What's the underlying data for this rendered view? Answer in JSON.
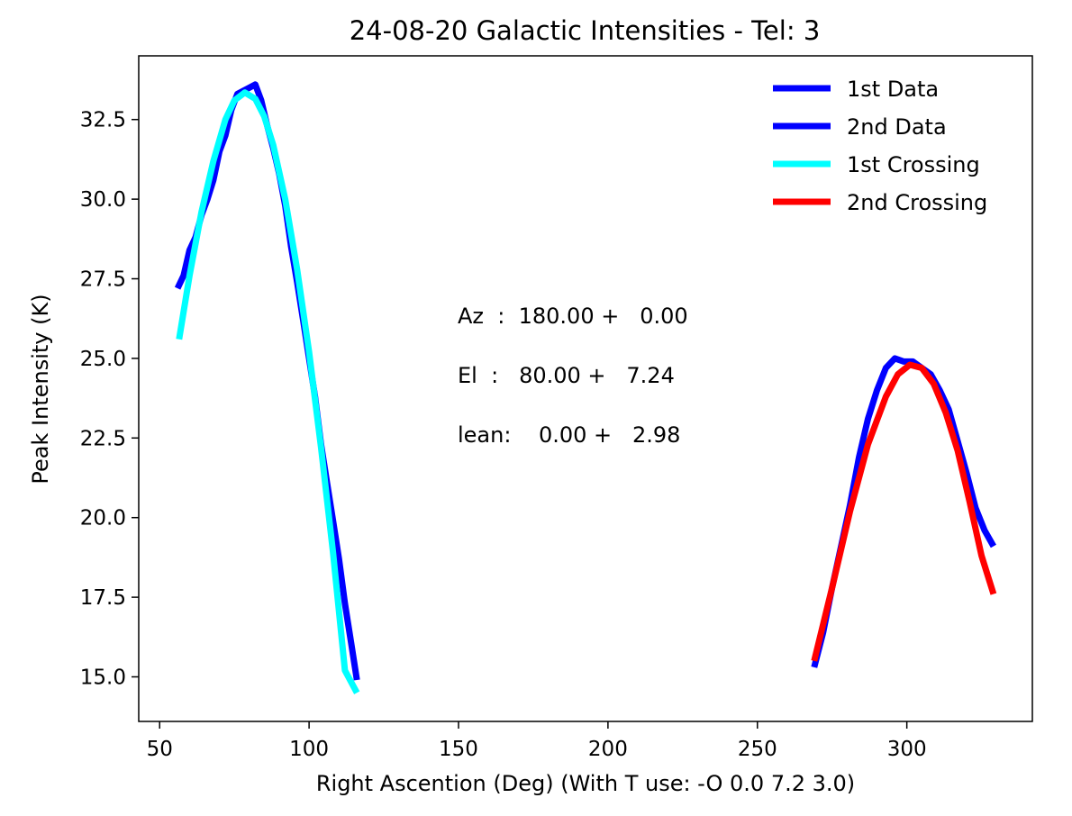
{
  "chart_data": {
    "type": "line",
    "title": "24-08-20 Galactic Intensities - Tel: 3",
    "xlabel": "Right Ascention (Deg)  (With T use: -O 0.0 7.2 3.0)",
    "ylabel": "Peak Intensity (K)",
    "xlim": [
      43,
      342
    ],
    "ylim": [
      13.6,
      34.5
    ],
    "x_ticks": [
      50,
      100,
      150,
      200,
      250,
      300
    ],
    "y_ticks": [
      15.0,
      17.5,
      20.0,
      22.5,
      25.0,
      27.5,
      30.0,
      32.5
    ],
    "x_tick_labels": [
      "50",
      "100",
      "150",
      "200",
      "250",
      "300"
    ],
    "y_tick_labels": [
      "15.0",
      "17.5",
      "20.0",
      "22.5",
      "25.0",
      "27.5",
      "30.0",
      "32.5"
    ],
    "grid": false,
    "legend_position": "top-right",
    "series": [
      {
        "name": "1st Data",
        "color": "#0000ff",
        "x": [
          56,
          58,
          60,
          62,
          64,
          66,
          68,
          70,
          72,
          74,
          76,
          78,
          80,
          82,
          84,
          86,
          88,
          90,
          92,
          94,
          96,
          98,
          100,
          102,
          104,
          106,
          108,
          110,
          112,
          114,
          116
        ],
        "y": [
          27.2,
          27.6,
          28.4,
          28.8,
          29.5,
          30.0,
          30.6,
          31.5,
          32.0,
          32.8,
          33.3,
          33.4,
          33.5,
          33.6,
          33.1,
          32.3,
          31.6,
          30.8,
          29.8,
          28.5,
          27.4,
          26.2,
          25.0,
          23.8,
          22.3,
          21.1,
          19.9,
          18.7,
          17.3,
          16.1,
          14.9
        ]
      },
      {
        "name": "2nd Data",
        "color": "#0000ff",
        "x": [
          269,
          272,
          275,
          278,
          281,
          284,
          287,
          290,
          293,
          296,
          299,
          302,
          305,
          308,
          311,
          314,
          317,
          320,
          323,
          326,
          329
        ],
        "y": [
          15.3,
          16.4,
          17.8,
          19.1,
          20.4,
          21.9,
          23.1,
          24.0,
          24.7,
          25.0,
          24.9,
          24.9,
          24.7,
          24.5,
          24.0,
          23.4,
          22.4,
          21.4,
          20.3,
          19.6,
          19.1
        ]
      },
      {
        "name": "1st Crossing",
        "color": "#00ffff",
        "x": [
          56.5,
          60,
          64,
          68,
          72,
          75,
          78.5,
          82,
          85,
          88,
          92,
          96,
          100,
          104,
          108,
          112,
          116
        ],
        "y": [
          25.6,
          27.6,
          29.6,
          31.2,
          32.5,
          33.1,
          33.35,
          33.15,
          32.6,
          31.7,
          30.0,
          27.8,
          25.2,
          22.2,
          18.9,
          15.2,
          14.5
        ]
      },
      {
        "name": "2nd Crossing",
        "color": "#ff0000",
        "x": [
          269,
          275,
          281,
          287,
          293,
          297,
          301,
          305,
          309,
          313,
          317,
          321,
          325,
          329
        ],
        "y": [
          15.5,
          17.8,
          20.2,
          22.3,
          23.8,
          24.5,
          24.8,
          24.7,
          24.2,
          23.3,
          22.1,
          20.5,
          18.8,
          17.6
        ]
      }
    ],
    "annotations": [
      "Az  :  180.00 +   0.00",
      "El  :   80.00 +   7.24",
      "lean:    0.00 +   2.98"
    ]
  }
}
